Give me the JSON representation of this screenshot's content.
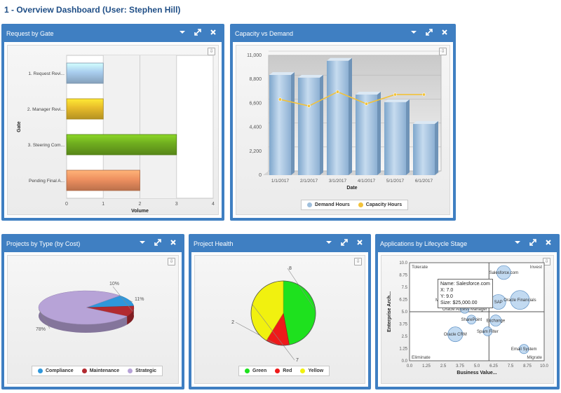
{
  "page": {
    "title": "1 - Overview Dashboard (User: Stephen Hill)"
  },
  "widgets": {
    "gate": {
      "title": "Request by Gate"
    },
    "capacity": {
      "title": "Capacity vs Demand"
    },
    "type": {
      "title": "Projects by Type (by Cost)"
    },
    "health": {
      "title": "Project Health"
    },
    "lifecycle": {
      "title": "Applications by Lifecycle Stage"
    }
  },
  "icons": [
    "chevron-down-icon",
    "expand-icon",
    "close-icon",
    "export-icon"
  ],
  "chart_data": [
    {
      "id": "gate",
      "type": "bar",
      "orientation": "horizontal",
      "categories": [
        "1. Request Revi...",
        "2. Manager Revi...",
        "3. Steering Com...",
        "Pending Final A..."
      ],
      "values": [
        1,
        1,
        3,
        2
      ],
      "colors": [
        "#a9cdee",
        "#e7bb2a",
        "#6fac1f",
        "#ee9060"
      ],
      "xlabel": "Volume",
      "ylabel": "Gate",
      "xlim": [
        0,
        4
      ],
      "xticks": [
        "0",
        "1",
        "2",
        "3",
        "4"
      ],
      "grid": true
    },
    {
      "id": "capacity",
      "type": "bar",
      "categories": [
        "1/1/2017",
        "2/1/2017",
        "3/1/2017",
        "4/1/2017",
        "5/1/2017",
        "6/1/2017"
      ],
      "series": [
        {
          "name": "Demand Hours",
          "type": "bar",
          "color": "#9fbfdc",
          "values": [
            9200,
            8950,
            10500,
            7400,
            6700,
            4700
          ]
        },
        {
          "name": "Capacity Hours",
          "type": "line",
          "color": "#f2c23a",
          "values": [
            6950,
            6350,
            7650,
            6550,
            7400,
            7400
          ]
        }
      ],
      "xlabel": "Date",
      "ylabel": "",
      "ylim": [
        0,
        11000
      ],
      "yticks": [
        "0",
        "2,200",
        "4,400",
        "6,600",
        "8,800",
        "11,000"
      ],
      "legend": "bottom",
      "grid": true
    },
    {
      "id": "type",
      "type": "pie",
      "slices": [
        {
          "name": "Compliance",
          "value": 11,
          "label": "11%",
          "color": "#2f97db"
        },
        {
          "name": "Maintenance",
          "value": 10,
          "label": "10%",
          "color": "#b22a30"
        },
        {
          "name": "Strategic",
          "value": 78,
          "label": "78%",
          "color": "#b7a3d7"
        }
      ],
      "legend": "bottom"
    },
    {
      "id": "health",
      "type": "pie",
      "slices": [
        {
          "name": "Green",
          "value": 8,
          "label": "8",
          "color": "#1ee11e"
        },
        {
          "name": "Red",
          "value": 2,
          "label": "2",
          "color": "#ee1a1a"
        },
        {
          "name": "Yellow",
          "value": 7,
          "label": "7",
          "color": "#f1f10f"
        }
      ],
      "legend": "bottom"
    },
    {
      "id": "lifecycle",
      "type": "scatter",
      "xlabel": "Business Value...",
      "ylabel": "Enterprise Arch...",
      "xlim": [
        0,
        10
      ],
      "ylim": [
        0,
        10
      ],
      "xticks": [
        "0.0",
        "1.25",
        "2.5",
        "3.75",
        "5.0",
        "6.25",
        "7.5",
        "8.75",
        "10.0"
      ],
      "yticks": [
        "0.0",
        "1.25",
        "2.5",
        "3.75",
        "5.0",
        "6.25",
        "7.5",
        "8.75",
        "10.0"
      ],
      "quadrants": [
        "Tolerate",
        "Invest",
        "Eliminate",
        "Migrate"
      ],
      "points": [
        {
          "name": "Salesforce.com",
          "x": 7.0,
          "y": 9.0,
          "size": 25000
        },
        {
          "name": "Oracle Financials",
          "x": 8.2,
          "y": 6.2,
          "size": 60000
        },
        {
          "name": "SAP",
          "x": 6.6,
          "y": 6.0,
          "size": 30000
        },
        {
          "name": "Marketo",
          "x": 2.5,
          "y": 6.2,
          "size": 5000
        },
        {
          "name": "Oracle Access Manager",
          "x": 4.1,
          "y": 5.3,
          "size": 5000
        },
        {
          "name": "SharePoint",
          "x": 4.6,
          "y": 4.2,
          "size": 5000
        },
        {
          "name": "Exchange",
          "x": 6.4,
          "y": 4.1,
          "size": 12000
        },
        {
          "name": "Oracle CRM",
          "x": 3.4,
          "y": 2.7,
          "size": 30000
        },
        {
          "name": "Spam Filter",
          "x": 5.8,
          "y": 3.0,
          "size": 5000
        },
        {
          "name": "Email System",
          "x": 8.5,
          "y": 1.2,
          "size": 6000
        }
      ],
      "tooltip": {
        "name": "Name: Salesforce.com",
        "x": "X: 7.0",
        "y": "Y: 9.0",
        "size": "Size: $25,000.00"
      },
      "grid": false
    }
  ]
}
